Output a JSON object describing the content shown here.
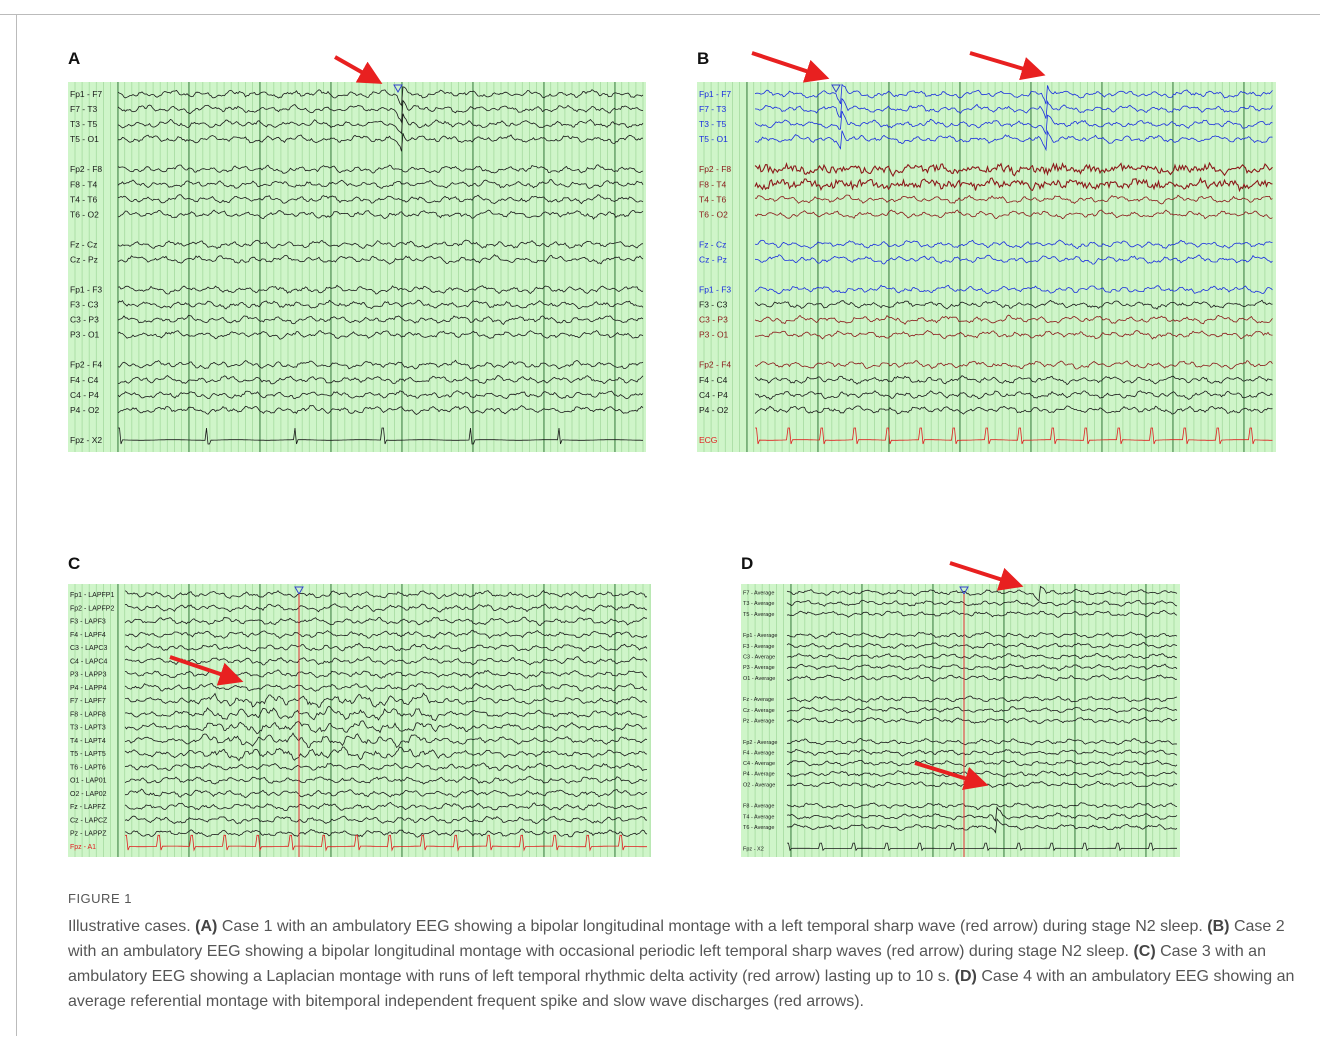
{
  "panels": [
    {
      "letter": "A",
      "trace_color": "#1a1a1a",
      "groups": [
        [
          "Fp1 - F7",
          "F7 - T3",
          "T3 - T5",
          "T5 - O1"
        ],
        [
          "Fp2 - F8",
          "F8 - T4",
          "T4 - T6",
          "T6 - O2"
        ],
        [
          "Fz - Cz",
          "Cz - Pz"
        ],
        [
          "Fp1 - F3",
          "F3 - C3",
          "C3 - P3",
          "P3 - O1"
        ],
        [
          "Fp2 - F4",
          "F4 - C4",
          "C4 - P4",
          "P4 - O2"
        ],
        [
          "Fpz - X2"
        ]
      ]
    },
    {
      "letter": "B",
      "trace_color": "#1a1a1a",
      "groups": [
        [
          {
            "label": "Fp1 - F7",
            "color": "#1a2ee0"
          },
          {
            "label": "F7 - T3",
            "color": "#1a2ee0"
          },
          {
            "label": "T3 - T5",
            "color": "#1a2ee0"
          },
          {
            "label": "T5 - O1",
            "color": "#1a2ee0"
          }
        ],
        [
          {
            "label": "Fp2 - F8",
            "color": "#8b1a1a"
          },
          {
            "label": "F8 - T4",
            "color": "#8b1a1a"
          },
          {
            "label": "T4 - T6",
            "color": "#8b1a1a"
          },
          {
            "label": "T6 - O2",
            "color": "#8b1a1a"
          }
        ],
        [
          {
            "label": "Fz - Cz",
            "color": "#1a2ee0"
          },
          {
            "label": "Cz - Pz",
            "color": "#1a2ee0"
          }
        ],
        [
          {
            "label": "Fp1 - F3",
            "color": "#1a2ee0"
          },
          {
            "label": "F3 - C3",
            "color": "#1a1a1a"
          },
          {
            "label": "C3 - P3",
            "color": "#8b1a1a"
          },
          {
            "label": "P3 - O1",
            "color": "#8b1a1a"
          }
        ],
        [
          {
            "label": "Fp2 - F4",
            "color": "#8b1a1a"
          },
          {
            "label": "F4 - C4",
            "color": "#1a1a1a"
          },
          {
            "label": "C4 - P4",
            "color": "#1a1a1a"
          },
          {
            "label": "P4 - O2",
            "color": "#1a1a1a"
          }
        ],
        [
          {
            "label": "ECG",
            "color": "#e02020"
          }
        ]
      ]
    },
    {
      "letter": "C",
      "trace_color": "#1a1a1a",
      "groups": [
        [
          "Fp1 - LAPFP1",
          "Fp2 - LAPFP2",
          "F3 - LAPF3",
          "F4 - LAPF4",
          "C3 - LAPC3",
          "C4 - LAPC4",
          "P3 - LAPP3",
          "P4 - LAPP4",
          "F7 - LAPF7",
          "F8 - LAPF8",
          "T3 - LAPT3",
          "T4 - LAPT4",
          "T5 - LAPT5",
          "T6 - LAPT6",
          "O1 - LAP01",
          "O2 - LAP02",
          "Fz - LAPFZ",
          "Cz - LAPCZ",
          "Pz - LAPPZ",
          {
            "label": "Fpz - A1",
            "color": "#e02020"
          }
        ]
      ]
    },
    {
      "letter": "D",
      "trace_color": "#1a1a1a",
      "groups": [
        [
          "F7 - Average",
          "T3 - Average",
          "T5 - Average"
        ],
        [
          "Fp1 - Average",
          "F3 - Average",
          "C3 - Average",
          "P3 - Average",
          "O1 - Average"
        ],
        [
          "Fz - Average",
          "Cz - Average",
          "Pz - Average"
        ],
        [
          "Fp2 - Average",
          "F4 - Average",
          "C4 - Average",
          "P4 - Average",
          "O2 - Average"
        ],
        [
          "F8 - Average",
          "T4 - Average",
          "T6 - Average"
        ],
        [
          "Fpz - X2"
        ]
      ]
    }
  ],
  "caption": {
    "figure": "FIGURE 1",
    "intro": "Illustrative cases.",
    "cases": [
      {
        "label": "(A)",
        "text": "Case 1 with an ambulatory EEG showing a bipolar longitudinal montage with a left temporal sharp wave (red arrow) during stage N2 sleep."
      },
      {
        "label": "(B)",
        "text": "Case 2 with an ambulatory EEG showing a bipolar longitudinal montage with occasional periodic left temporal sharp waves (red arrow) during stage N2 sleep."
      },
      {
        "label": "(C)",
        "text": "Case 3 with an ambulatory EEG showing a Laplacian montage with runs of left temporal rhythmic delta activity (red arrow) lasting up to 10 s."
      },
      {
        "label": "(D)",
        "text": "Case 4 with an ambulatory EEG showing an average referential montage with bitemporal independent frequent spike and slow wave discharges (red arrows)."
      }
    ]
  }
}
